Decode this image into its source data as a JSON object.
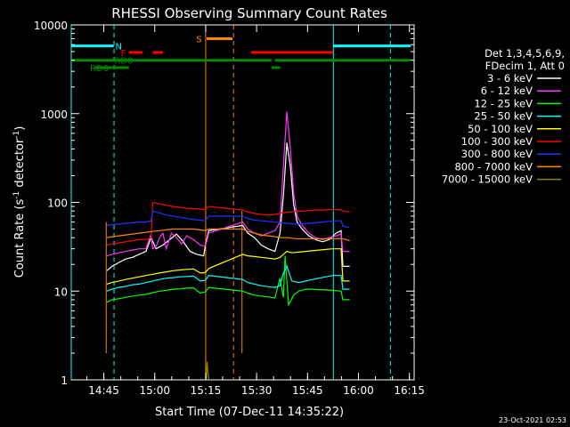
{
  "chart_data": {
    "type": "line",
    "title": "RHESSI Observing Summary Count Rates",
    "xlabel": "Start Time (07-Dec-11 14:35:22)",
    "ylabel_main": "Count Rate (s",
    "ylabel_sup1": "-1",
    "ylabel_mid": " detector",
    "ylabel_sup2": "-1",
    "ylabel_end": ")",
    "footer": "23-Oct-2021 02:53",
    "x_start": "14:35:22",
    "xlim_minutes": [
      0,
      101
    ],
    "ylim": [
      1,
      10000
    ],
    "yscale": "log",
    "x_ticks": [
      {
        "label": "14:45",
        "min": 9.6
      },
      {
        "label": "15:00",
        "min": 24.6
      },
      {
        "label": "15:15",
        "min": 39.6
      },
      {
        "label": "15:30",
        "min": 54.6
      },
      {
        "label": "15:45",
        "min": 69.6
      },
      {
        "label": "16:00",
        "min": 84.6
      },
      {
        "label": "16:15",
        "min": 99.6
      }
    ],
    "y_ticks": [
      {
        "label": "1",
        "value": 1
      },
      {
        "label": "10",
        "value": 10
      },
      {
        "label": "100",
        "value": 100
      },
      {
        "label": "1000",
        "value": 1000
      },
      {
        "label": "10000",
        "value": 10000
      }
    ],
    "legend": {
      "header": [
        "Det 1,3,4,5,6,9,",
        "FDecim 1, Att 0"
      ],
      "placement": "right"
    },
    "series": [
      {
        "name": "3 - 6 keV",
        "color": "#ffffff",
        "x": [
          10.5,
          12,
          14,
          16,
          18,
          20,
          22,
          23.5,
          25,
          27,
          29,
          31,
          33,
          35,
          37,
          39,
          39.5,
          40.5,
          50.5,
          52,
          54,
          56,
          58,
          60,
          61.5,
          62.5,
          63.5,
          64.5,
          65.5,
          66.5,
          68,
          70,
          72,
          74,
          76,
          78,
          79.5,
          80,
          82
        ],
        "y": [
          17,
          19,
          21,
          23,
          24,
          26,
          28,
          40,
          30,
          33,
          38,
          44,
          36,
          28,
          26,
          25,
          33,
          48,
          55,
          45,
          40,
          33,
          30,
          28,
          45,
          120,
          470,
          260,
          95,
          60,
          50,
          42,
          38,
          36,
          38,
          45,
          48,
          19,
          19
        ]
      },
      {
        "name": "6 - 12 keV",
        "color": "#ff33ff",
        "x": [
          10.5,
          12,
          14,
          16,
          18,
          20,
          22,
          23.5,
          24,
          25,
          26,
          27,
          28,
          29.5,
          31,
          32.5,
          34,
          36,
          38,
          39.5,
          40.5,
          50.5,
          52,
          54,
          56,
          58,
          60,
          61.5,
          62.5,
          63.5,
          64.5,
          65.5,
          66.5,
          68,
          70,
          72,
          74,
          76,
          78,
          79.5,
          80,
          82
        ],
        "y": [
          25,
          26,
          27,
          28,
          29,
          30,
          30,
          44,
          30,
          32,
          40,
          45,
          30,
          45,
          40,
          34,
          42,
          38,
          33,
          32,
          45,
          60,
          50,
          45,
          42,
          45,
          48,
          60,
          260,
          1050,
          420,
          130,
          70,
          55,
          45,
          40,
          38,
          40,
          42,
          44,
          28,
          28
        ]
      },
      {
        "name": "12 - 25 keV",
        "color": "#00ff00",
        "x": [
          10.5,
          12,
          14,
          16,
          18,
          20,
          22,
          24,
          26,
          28,
          30,
          32,
          34,
          36,
          38,
          39.5,
          40.5,
          50.5,
          52,
          54,
          56,
          58,
          60,
          61.5,
          62.5,
          63,
          64,
          65.5,
          67,
          69,
          71,
          73,
          75,
          77,
          79.5,
          80,
          82
        ],
        "y": [
          7.5,
          8,
          8.2,
          8.5,
          8.8,
          9,
          9.2,
          9.6,
          10,
          10.2,
          10.5,
          10.6,
          10.8,
          10.9,
          9.5,
          9.8,
          11,
          10,
          9.5,
          9,
          8.8,
          8.6,
          8.4,
          14,
          8.5,
          25,
          7,
          9,
          10,
          10.5,
          10.5,
          10.4,
          10.3,
          10.2,
          10,
          8,
          8
        ]
      },
      {
        "name": "25 - 50 keV",
        "color": "#00ffff",
        "x": [
          10.5,
          12,
          14,
          16,
          18,
          20,
          22,
          24,
          26,
          28,
          30,
          32,
          34,
          36,
          38,
          39.5,
          40.5,
          50.5,
          52,
          54,
          56,
          58,
          60,
          61.5,
          62.5,
          63.5,
          65,
          67,
          69,
          71,
          73,
          75,
          77,
          79.5,
          80,
          82
        ],
        "y": [
          10,
          10.5,
          11,
          11.3,
          11.8,
          12,
          12.5,
          13,
          13.5,
          14,
          14.2,
          14.5,
          14.6,
          14.8,
          13,
          13.2,
          15,
          13.5,
          12.5,
          12,
          11.5,
          11.2,
          11,
          11.5,
          16,
          19,
          13,
          12.5,
          13,
          13.5,
          14,
          14.5,
          15,
          15,
          10.5,
          10.5
        ]
      },
      {
        "name": "50 - 100 keV",
        "color": "#ffff00",
        "x": [
          10.5,
          12,
          14,
          16,
          18,
          20,
          22,
          24,
          26,
          28,
          30,
          32,
          34,
          36,
          38,
          39.5,
          40.5,
          50.5,
          52,
          54,
          56,
          58,
          60,
          61.5,
          62.5,
          63.5,
          65,
          67,
          69,
          71,
          73,
          75,
          77,
          79.5,
          80,
          82
        ],
        "y": [
          12,
          12.5,
          13,
          13.5,
          14,
          14.5,
          15,
          15.5,
          16,
          16.5,
          17,
          17.3,
          17.6,
          17.8,
          16,
          16.2,
          18,
          26,
          25,
          24.5,
          24,
          23.5,
          23,
          24,
          26,
          28,
          27,
          27.5,
          28,
          28.5,
          29,
          29.5,
          30,
          30,
          13,
          13
        ]
      },
      {
        "name": "100 - 300 keV",
        "color": "#ff0000",
        "x": [
          10.5,
          12,
          14,
          16,
          18,
          20,
          22,
          23.5,
          24,
          26,
          28,
          30,
          32,
          34,
          36,
          38,
          39.5,
          40.5,
          50.5,
          52,
          54,
          56,
          58,
          60,
          62,
          64,
          66,
          68,
          70,
          72,
          74,
          76,
          78,
          79.5,
          80,
          82
        ],
        "y": [
          33,
          34,
          35,
          36,
          37,
          38,
          38,
          40,
          100,
          96,
          93,
          90,
          88,
          86,
          85,
          84,
          83,
          90,
          82,
          78,
          75,
          73,
          72,
          73,
          76,
          78,
          79,
          80,
          81,
          82,
          82,
          83,
          83,
          82,
          80,
          78
        ]
      },
      {
        "name": "300 - 800 keV",
        "color": "#2233ff",
        "x": [
          10.5,
          12,
          14,
          16,
          18,
          20,
          22,
          23.5,
          24,
          26,
          28,
          30,
          32,
          34,
          36,
          38,
          39.5,
          40.5,
          50.5,
          52,
          54,
          56,
          58,
          60,
          62,
          64,
          66,
          68,
          70,
          72,
          74,
          76,
          78,
          79.5,
          80,
          82
        ],
        "y": [
          55,
          56,
          57,
          58,
          59,
          60,
          60,
          62,
          80,
          76,
          72,
          70,
          68,
          66,
          64,
          63,
          62,
          70,
          70,
          66,
          63,
          62,
          61,
          60,
          59,
          58,
          57,
          57,
          58,
          59,
          60,
          61,
          62,
          62,
          54,
          52
        ]
      },
      {
        "name": "800 - 7000 keV",
        "color": "#ff8800",
        "x": [
          10.5,
          12,
          14,
          16,
          18,
          20,
          22,
          24,
          26,
          28,
          30,
          32,
          34,
          36,
          38,
          39.5,
          40.5,
          50.5,
          52,
          54,
          56,
          58,
          60,
          62,
          64,
          66,
          68,
          70,
          72,
          74,
          76,
          78,
          79.5,
          80,
          82
        ],
        "y": [
          40,
          41,
          42,
          43,
          44,
          45,
          46,
          47,
          48,
          49,
          50,
          50,
          50,
          50,
          49,
          48,
          50,
          50,
          47,
          45,
          43,
          42,
          41,
          40,
          40,
          39,
          39,
          39,
          39,
          39,
          39,
          39,
          39,
          39,
          37
        ]
      },
      {
        "name": "7000 - 15000 keV",
        "color": "#888800",
        "x": [
          39.8,
          40,
          40.3,
          40.6
        ],
        "y": [
          1,
          1.6,
          1.2,
          1
        ]
      }
    ],
    "spikes": [
      {
        "min": 10.3,
        "color": "#ff8800",
        "from": 2,
        "to": 60
      },
      {
        "min": 50.3,
        "color": "#ff8800",
        "from": 2,
        "to": 80
      }
    ],
    "vertical_lines": [
      {
        "min": 0,
        "color": "#00ffff",
        "style": "solid"
      },
      {
        "min": 12.6,
        "color": "#00ffff",
        "style": "dashed"
      },
      {
        "min": 39.6,
        "color": "#ff8800",
        "style": "solid"
      },
      {
        "min": 47.8,
        "color": "#ff8800",
        "style": "dashed"
      },
      {
        "min": 77.2,
        "color": "#00ffff",
        "style": "solid"
      },
      {
        "min": 94.0,
        "color": "#00ffff",
        "style": "dashed"
      }
    ],
    "flag_bars": [
      {
        "label": "N",
        "color": "#00ffff",
        "level": 5800,
        "segments": [
          [
            0,
            12.5
          ],
          [
            77.2,
            100
          ]
        ],
        "label_at": 13.0
      },
      {
        "label": "S",
        "color": "#ff8800",
        "level": 7000,
        "segments": [
          [
            39.9,
            47.5
          ]
        ],
        "label_at": 36.8
      },
      {
        "label": "F",
        "color": "#ff0000",
        "level": 4900,
        "segments": [
          [
            17,
            21
          ],
          [
            24,
            27
          ],
          [
            53,
            77
          ]
        ],
        "label_at": 14.6
      },
      {
        "label": "RD0",
        "color": "#008800",
        "level": 4000,
        "segments": [
          [
            0,
            59
          ],
          [
            60,
            100
          ]
        ],
        "label_at": 12.7
      },
      {
        "label": "RD6",
        "color": "#008800",
        "level": 3300,
        "segments": [
          [
            7,
            17
          ],
          [
            59,
            61.5
          ]
        ],
        "label_at": 5.5
      }
    ]
  }
}
